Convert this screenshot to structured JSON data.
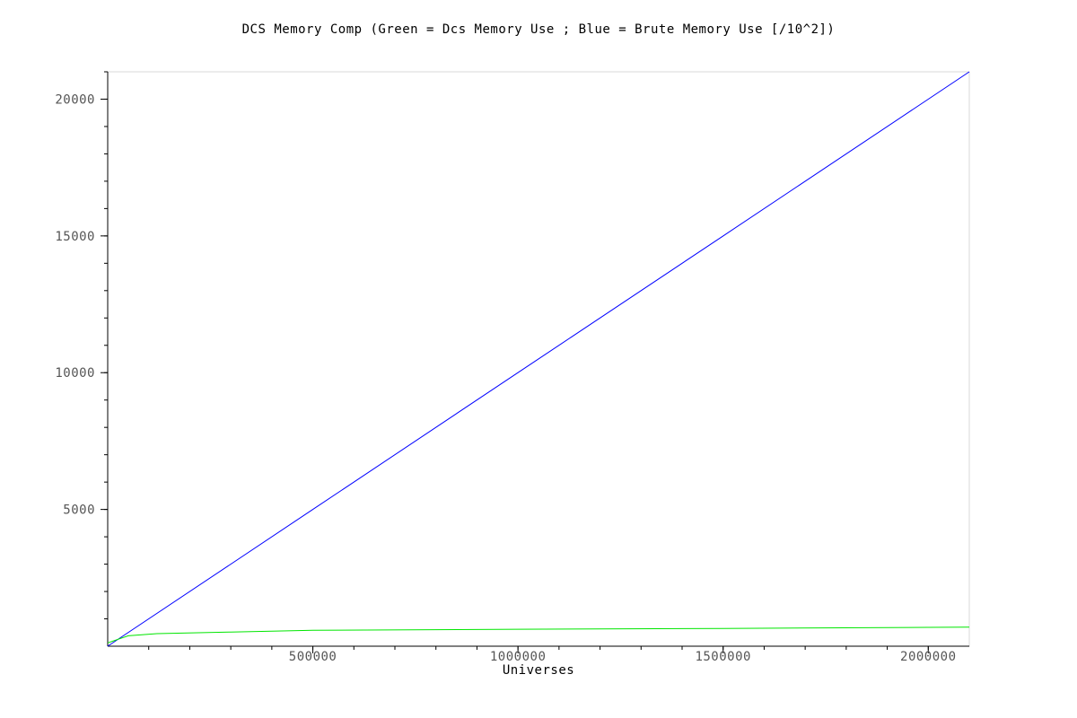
{
  "chart_data": {
    "type": "line",
    "title": "DCS Memory Comp (Green = Dcs Memory Use ; Blue = Brute Memory Use [/10^2])",
    "xlabel": "Universes",
    "ylabel": "",
    "xlim": [
      0,
      2100000
    ],
    "ylim": [
      0,
      21000
    ],
    "x_ticks": [
      500000,
      1000000,
      1500000,
      2000000
    ],
    "x_tick_labels": [
      "500000",
      "1000000",
      "1500000",
      "2000000"
    ],
    "x_minor_step": 100000,
    "y_ticks": [
      5000,
      10000,
      15000,
      20000
    ],
    "y_tick_labels": [
      "5000",
      "10000",
      "15000",
      "20000"
    ],
    "y_minor_step": 1000,
    "grid": false,
    "legend": "none",
    "series": [
      {
        "color": "#0000ff",
        "x": [
          0,
          500000,
          1000000,
          1500000,
          2000000,
          2100000
        ],
        "values": [
          0,
          5000,
          10000,
          15000,
          20000,
          21000
        ]
      },
      {
        "color": "#00e600",
        "x": [
          0,
          50000,
          120000,
          300000,
          500000,
          1000000,
          1500000,
          2000000,
          2100000
        ],
        "values": [
          120,
          380,
          460,
          520,
          580,
          620,
          650,
          690,
          700
        ]
      }
    ]
  }
}
